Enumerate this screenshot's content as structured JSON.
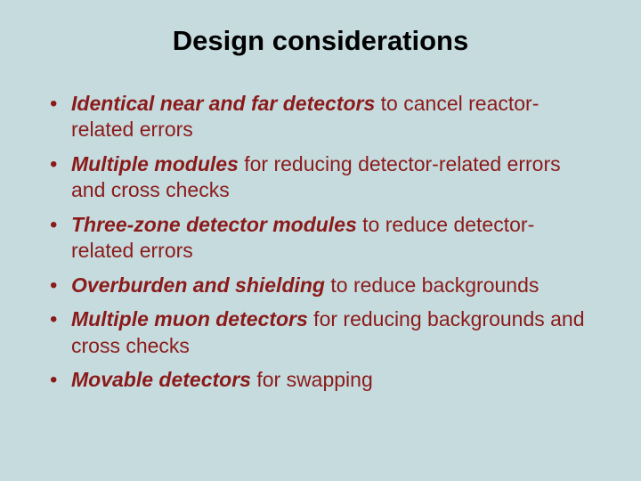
{
  "slide": {
    "title": "Design considerations",
    "background_color": "#c6dbde",
    "text_color": "#8b1a1a",
    "title_color": "#000000",
    "title_fontsize": 31,
    "body_fontsize": 23,
    "bullets": [
      {
        "bold": "Identical near and far detectors",
        "rest": " to cancel reactor-related errors"
      },
      {
        "bold": "Multiple modules",
        "rest": " for reducing detector-related errors and cross checks"
      },
      {
        "bold": "Three-zone detector modules",
        "rest": " to reduce detector-related errors"
      },
      {
        "bold": "Overburden and shielding",
        "rest": " to reduce backgrounds"
      },
      {
        "bold": "Multiple muon detectors",
        "rest": " for reducing backgrounds and cross checks"
      },
      {
        "bold": "Movable detectors",
        "rest": " for swapping"
      }
    ]
  }
}
